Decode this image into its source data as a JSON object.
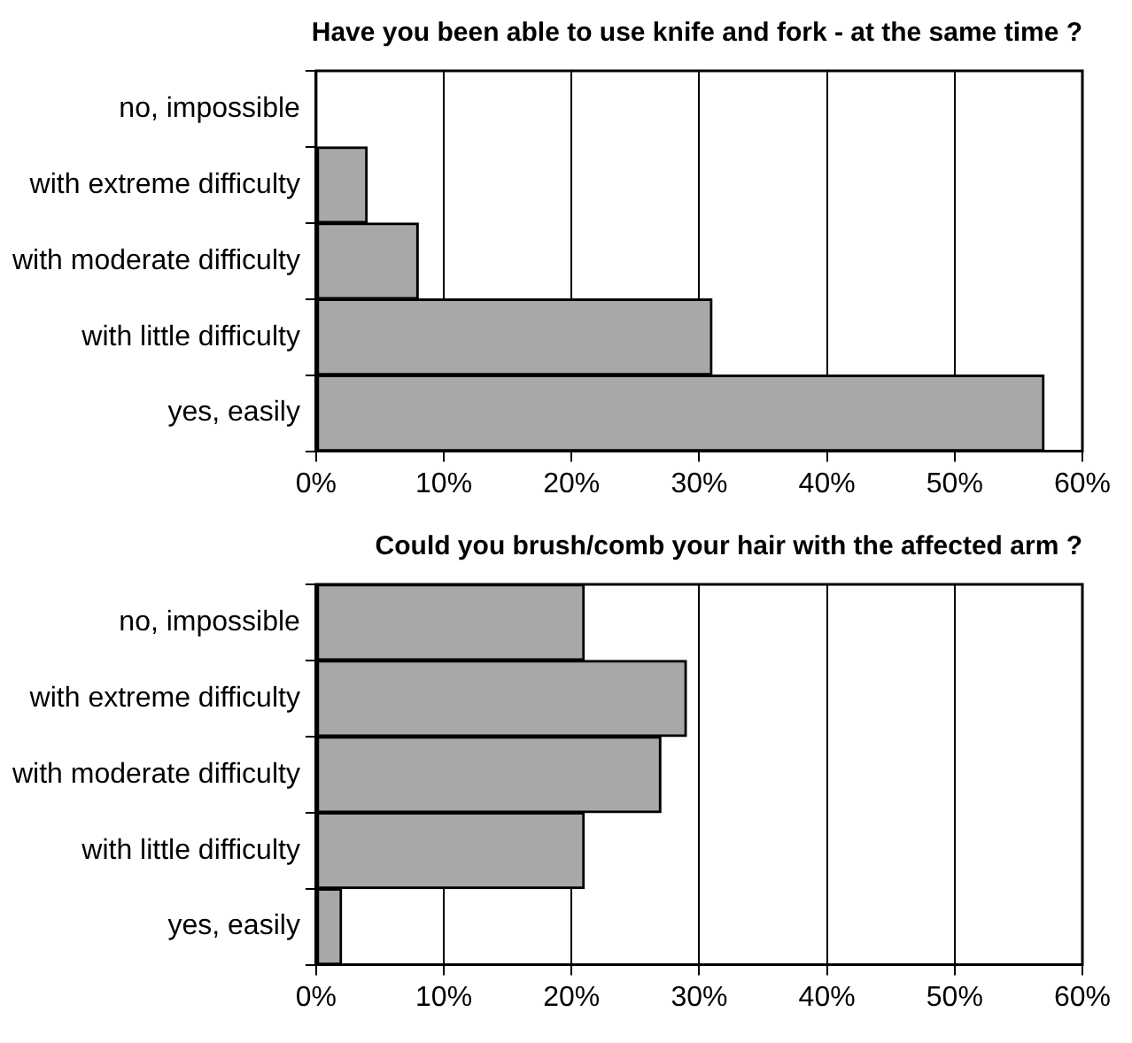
{
  "chart_data": [
    {
      "type": "bar",
      "orientation": "horizontal",
      "title": "Have you been able to use knife and fork - at the same time ?",
      "categories": [
        "no, impossible",
        "with extreme difficulty",
        "with moderate difficulty",
        "with little difficulty",
        "yes, easily"
      ],
      "values": [
        0,
        4,
        8,
        31,
        57
      ],
      "color": "#a7a8aa",
      "xlim": [
        0,
        60
      ],
      "xticks": [
        {
          "value": 0,
          "label": "0%"
        },
        {
          "value": 10,
          "label": "10%"
        },
        {
          "value": 20,
          "label": "20%"
        },
        {
          "value": 30,
          "label": "30%"
        },
        {
          "value": 40,
          "label": "40%"
        },
        {
          "value": 50,
          "label": "50%"
        },
        {
          "value": 60,
          "label": "60%"
        }
      ],
      "grid": "x",
      "legend": false
    },
    {
      "type": "bar",
      "orientation": "horizontal",
      "title": "Could you brush/comb your hair with the affected arm ?",
      "categories": [
        "no, impossible",
        "with extreme difficulty",
        "with moderate difficulty",
        "with little difficulty",
        "yes, easily"
      ],
      "values": [
        21,
        29,
        27,
        21,
        2
      ],
      "color": "#a7a8aa",
      "xlim": [
        0,
        60
      ],
      "xticks": [
        {
          "value": 0,
          "label": "0%"
        },
        {
          "value": 10,
          "label": "10%"
        },
        {
          "value": 20,
          "label": "20%"
        },
        {
          "value": 30,
          "label": "30%"
        },
        {
          "value": 40,
          "label": "40%"
        },
        {
          "value": 50,
          "label": "50%"
        },
        {
          "value": 60,
          "label": "60%"
        }
      ],
      "grid": "x",
      "legend": false
    }
  ]
}
